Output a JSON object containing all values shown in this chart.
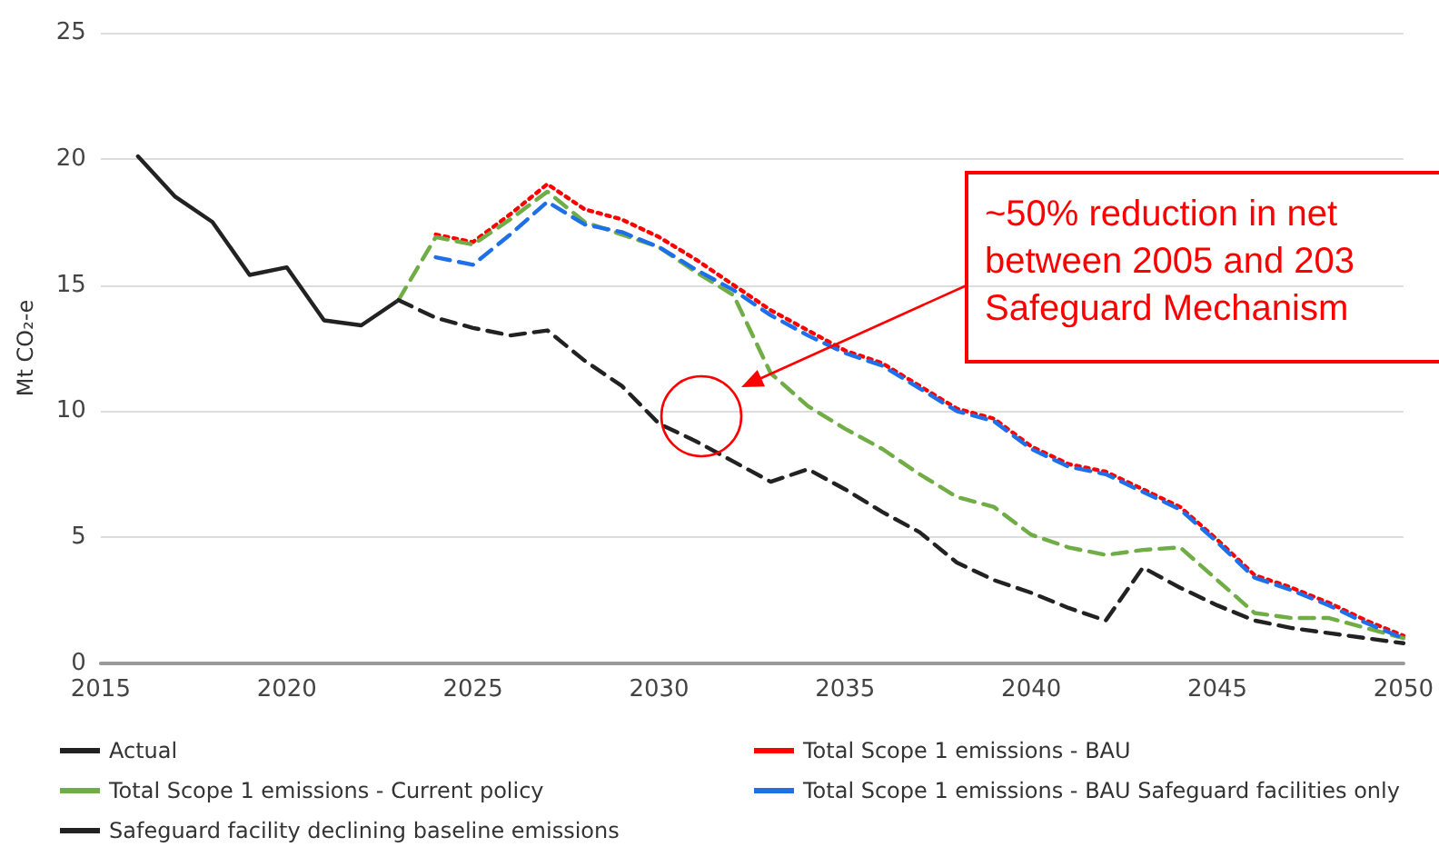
{
  "chart_data": {
    "type": "line",
    "ylabel": "Mt CO₂-e",
    "xlim": [
      2015,
      2050
    ],
    "xticks": [
      2015,
      2020,
      2025,
      2030,
      2035,
      2040,
      2045,
      2050
    ],
    "ylim": [
      0,
      25
    ],
    "yticks": [
      0,
      5,
      10,
      15,
      20,
      25
    ],
    "grid": "y",
    "legend": "bottom",
    "marker": "none",
    "series": [
      {
        "name": "Actual",
        "color": "#222222",
        "line_style": "solid",
        "x": [
          2016,
          2017,
          2018,
          2019,
          2020,
          2021,
          2022,
          2023
        ],
        "values": [
          20.1,
          18.5,
          17.5,
          15.4,
          15.7,
          13.6,
          13.4,
          14.4
        ]
      },
      {
        "name": "Total Scope 1 emissions - BAU",
        "color": "#ff0000",
        "line_style": "dotted",
        "x": [
          2024,
          2025,
          2026,
          2027,
          2028,
          2029,
          2030,
          2031,
          2032,
          2033,
          2034,
          2035,
          2036,
          2037,
          2038,
          2039,
          2040,
          2041,
          2042,
          2043,
          2044,
          2045,
          2046,
          2047,
          2048,
          2049,
          2050
        ],
        "values": [
          17.0,
          16.7,
          17.8,
          19.0,
          18.0,
          17.6,
          16.9,
          16.0,
          15.0,
          14.0,
          13.2,
          12.4,
          11.9,
          11.0,
          10.1,
          9.7,
          8.6,
          7.9,
          7.6,
          6.9,
          6.2,
          4.9,
          3.5,
          3.0,
          2.4,
          1.7,
          1.1
        ]
      },
      {
        "name": "Total Scope 1 emissions - Current policy",
        "color": "#70ad47",
        "line_style": "dashed",
        "x": [
          2023,
          2024,
          2025,
          2026,
          2027,
          2028,
          2029,
          2030,
          2031,
          2032,
          2033,
          2034,
          2035,
          2036,
          2037,
          2038,
          2039,
          2040,
          2041,
          2042,
          2043,
          2044,
          2045,
          2046,
          2047,
          2048,
          2049,
          2050
        ],
        "values": [
          14.4,
          16.9,
          16.6,
          17.6,
          18.7,
          17.5,
          17.0,
          16.5,
          15.5,
          14.6,
          11.5,
          10.2,
          9.3,
          8.5,
          7.5,
          6.6,
          6.2,
          5.1,
          4.6,
          4.3,
          4.5,
          4.6,
          3.3,
          2.0,
          1.8,
          1.8,
          1.4,
          1.0
        ]
      },
      {
        "name": "Total Scope 1 emissions - BAU Safeguard facilities only",
        "color": "#1f6fe8",
        "line_style": "dashed",
        "x": [
          2024,
          2025,
          2026,
          2027,
          2028,
          2029,
          2030,
          2031,
          2032,
          2033,
          2034,
          2035,
          2036,
          2037,
          2038,
          2039,
          2040,
          2041,
          2042,
          2043,
          2044,
          2045,
          2046,
          2047,
          2048,
          2049,
          2050
        ],
        "values": [
          16.1,
          15.8,
          17.0,
          18.3,
          17.4,
          17.1,
          16.5,
          15.6,
          14.8,
          13.8,
          13.0,
          12.3,
          11.8,
          10.9,
          10.0,
          9.6,
          8.5,
          7.8,
          7.5,
          6.8,
          6.1,
          4.8,
          3.4,
          2.9,
          2.3,
          1.6,
          1.0
        ]
      },
      {
        "name": "Safeguard facility declining baseline emissions",
        "color": "#222222",
        "line_style": "dashed",
        "x": [
          2023,
          2024,
          2025,
          2026,
          2027,
          2028,
          2029,
          2030,
          2031,
          2032,
          2033,
          2034,
          2035,
          2036,
          2037,
          2038,
          2039,
          2040,
          2041,
          2042,
          2043,
          2044,
          2045,
          2046,
          2047,
          2048,
          2049,
          2050
        ],
        "values": [
          14.4,
          13.7,
          13.3,
          13.0,
          13.2,
          12.0,
          11.0,
          9.5,
          8.8,
          8.0,
          7.2,
          7.7,
          6.9,
          6.0,
          5.2,
          4.0,
          3.3,
          2.8,
          2.2,
          1.7,
          3.8,
          3.0,
          2.3,
          1.7,
          1.4,
          1.2,
          1.0,
          0.8
        ]
      }
    ],
    "annotations": [
      "~50% reduction in net\nbetween 2005 and 203\nSafeguard Mechanism"
    ]
  }
}
